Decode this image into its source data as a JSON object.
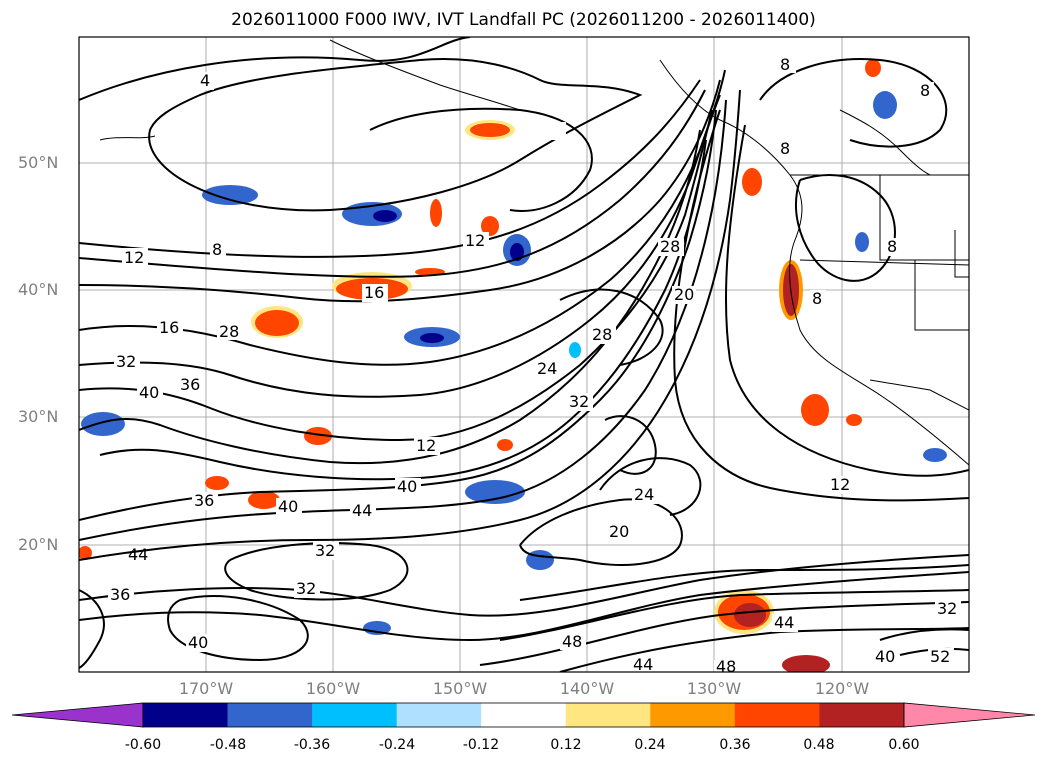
{
  "title": "2026011000 F000 IWV, IVT Landfall PC (2026011200 - 2026011400)",
  "lat_labels": [
    "50°N",
    "40°N",
    "30°N",
    "20°N"
  ],
  "lon_labels": [
    "170°W",
    "160°W",
    "150°W",
    "140°W",
    "130°W",
    "120°W"
  ],
  "colorbar": {
    "ticks": [
      "-0.60",
      "-0.48",
      "-0.36",
      "-0.24",
      "-0.12",
      "0.12",
      "0.24",
      "0.36",
      "0.48",
      "0.60"
    ],
    "colors": [
      "#9933cc",
      "#00008b",
      "#3366cc",
      "#00bfff",
      "#b0e0ff",
      "#ffffff",
      "#ffe680",
      "#ff9900",
      "#ff4500",
      "#b22222",
      "#ff88aa"
    ],
    "extend": "both"
  },
  "contour_labels": [
    "4",
    "8",
    "8",
    "8",
    "8",
    "8",
    "8",
    "12",
    "12",
    "12",
    "12",
    "16",
    "16",
    "20",
    "20",
    "24",
    "24",
    "28",
    "28",
    "28",
    "32",
    "32",
    "32",
    "32",
    "32",
    "36",
    "36",
    "36",
    "40",
    "40",
    "40",
    "40",
    "40",
    "44",
    "44",
    "44",
    "44",
    "48",
    "48",
    "52"
  ],
  "contour_colors": {
    "line": "#000000"
  }
}
